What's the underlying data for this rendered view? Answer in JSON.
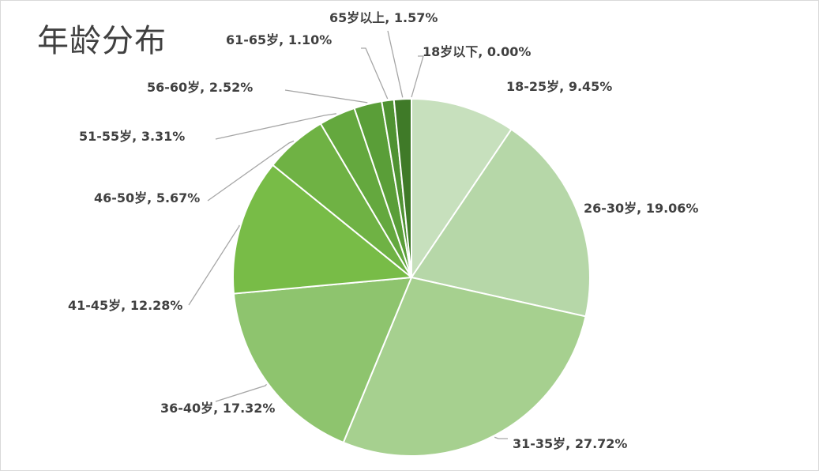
{
  "chart_data": {
    "type": "pie",
    "title": "年龄分布",
    "categories": [
      "18-25岁",
      "26-30岁",
      "31-35岁",
      "36-40岁",
      "41-45岁",
      "46-50岁",
      "51-55岁",
      "56-60岁",
      "61-65岁",
      "65岁以上",
      "18岁以下"
    ],
    "values": [
      9.45,
      19.06,
      27.72,
      17.32,
      12.28,
      5.67,
      3.31,
      2.52,
      1.1,
      1.57,
      0.0
    ],
    "labels": [
      "18-25岁, 9.45%",
      "26-30岁, 19.06%",
      "31-35岁, 27.72%",
      "36-40岁, 17.32%",
      "41-45岁, 12.28%",
      "46-50岁, 5.67%",
      "51-55岁, 3.31%",
      "56-60岁, 2.52%",
      "61-65岁, 1.10%",
      "65岁以上, 1.57%",
      "18岁以下, 0.00%"
    ],
    "colors": [
      "#c7e0bd",
      "#b6d7a8",
      "#a6d08f",
      "#8ec46e",
      "#78bc47",
      "#6fb244",
      "#64a83e",
      "#5a9e38",
      "#4f9232",
      "#3f7a28",
      "#2f6a1e"
    ],
    "legend": "none"
  }
}
